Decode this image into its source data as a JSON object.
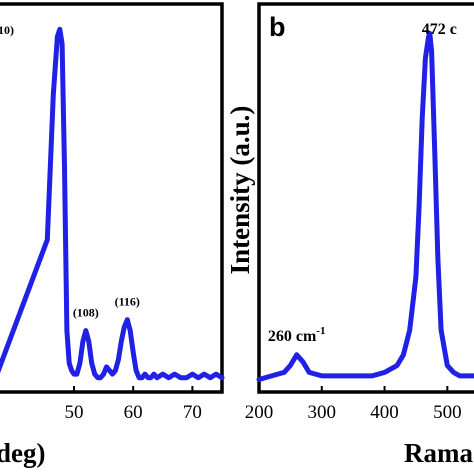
{
  "colors": {
    "series": "#2020e6",
    "frame": "#000000"
  },
  "chart_data": [
    {
      "type": "line",
      "panel_letter": "",
      "title": "",
      "xlabel_visible": "deg)",
      "ylabel": "",
      "xlim": [
        37,
        75
      ],
      "ylim": [
        0,
        100
      ],
      "x_ticks": [
        "50",
        "60",
        "70"
      ],
      "grid": false,
      "series": [
        {
          "x": [
            37,
            45.5,
            46.5,
            47.2,
            47.6,
            48.0,
            48.4,
            48.8,
            49.2,
            49.6,
            50.0,
            50.5,
            51.0,
            51.5,
            52.0,
            52.5,
            53.0,
            53.5,
            54.0,
            54.5,
            55.0,
            55.5,
            56.0,
            56.5,
            57.0,
            57.5,
            58.0,
            58.5,
            59.0,
            59.5,
            60.0,
            60.5,
            61.0,
            61.5,
            62.0,
            62.5,
            63.0,
            63.5,
            64.0,
            65.0,
            66.0,
            67.0,
            68.0,
            69.0,
            70.0,
            71.0,
            72.0,
            73.0,
            74.0,
            75.0
          ],
          "y": [
            3,
            40,
            80,
            96,
            98,
            94,
            60,
            15,
            6,
            4,
            3,
            3,
            6,
            12,
            15,
            12,
            6,
            3,
            2,
            2,
            3,
            5,
            4,
            3,
            4,
            7,
            12,
            16,
            18,
            15,
            9,
            4,
            2,
            2,
            3,
            2,
            2,
            3,
            2,
            3,
            2,
            3,
            2,
            2,
            3,
            2,
            3,
            2,
            3,
            2
          ]
        }
      ],
      "annotations": [
        {
          "text": "10)",
          "x": 47.5
        },
        {
          "text": "(108)",
          "x": 52.0
        },
        {
          "text": "(116)",
          "x": 59.0
        }
      ]
    },
    {
      "type": "line",
      "panel_letter": "b",
      "title": "",
      "xlabel_visible": "Rama",
      "ylabel": "Intensity (a.u.)",
      "xlim": [
        200,
        560
      ],
      "ylim": [
        0,
        100
      ],
      "x_ticks": [
        "200",
        "300",
        "400",
        "500"
      ],
      "grid": false,
      "series": [
        {
          "x": [
            200,
            220,
            240,
            250,
            260,
            270,
            280,
            300,
            320,
            340,
            360,
            380,
            400,
            420,
            430,
            440,
            450,
            455,
            460,
            465,
            470,
            472,
            475,
            480,
            485,
            490,
            500,
            510,
            520,
            540,
            560
          ],
          "y": [
            1,
            2,
            3,
            5,
            8,
            6,
            3,
            2,
            2,
            2,
            2,
            2,
            3,
            5,
            8,
            15,
            30,
            50,
            75,
            92,
            98,
            99,
            94,
            65,
            35,
            15,
            5,
            3,
            2,
            2,
            2
          ]
        }
      ],
      "annotations": [
        {
          "text": "472 c",
          "x": 472
        },
        {
          "text": "260 cm",
          "sup": "-1",
          "x": 260
        }
      ]
    }
  ]
}
